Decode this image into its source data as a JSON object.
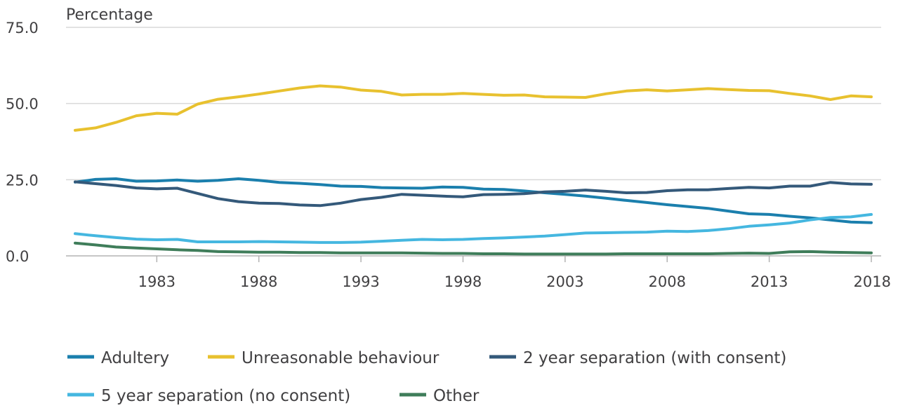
{
  "chart_data": {
    "type": "line",
    "title": "",
    "ylabel": "Percentage",
    "xlabel": "",
    "ylim": [
      0,
      75
    ],
    "xlim": [
      1979,
      2018
    ],
    "y_ticks": [
      0,
      25,
      50,
      75
    ],
    "y_tick_labels": [
      "0.0",
      "25.0",
      "50.0",
      "75.0"
    ],
    "x_ticks": [
      1983,
      1988,
      1993,
      1998,
      2003,
      2008,
      2013,
      2018
    ],
    "grid": true,
    "legend_position": "bottom",
    "x": [
      1979,
      1980,
      1981,
      1982,
      1983,
      1984,
      1985,
      1986,
      1987,
      1988,
      1989,
      1990,
      1991,
      1992,
      1993,
      1994,
      1995,
      1996,
      1997,
      1998,
      1999,
      2000,
      2001,
      2002,
      2003,
      2004,
      2005,
      2006,
      2007,
      2008,
      2009,
      2010,
      2011,
      2012,
      2013,
      2014,
      2015,
      2016,
      2017,
      2018
    ],
    "series": [
      {
        "name": "Adultery",
        "color": "#1b7fad",
        "values": [
          24.2,
          25.1,
          25.3,
          24.5,
          24.6,
          24.9,
          24.5,
          24.8,
          25.3,
          24.8,
          24.1,
          23.8,
          23.4,
          22.9,
          22.8,
          22.4,
          22.3,
          22.2,
          22.6,
          22.5,
          21.9,
          21.8,
          21.3,
          20.7,
          20.2,
          19.6,
          18.9,
          18.2,
          17.5,
          16.8,
          16.2,
          15.6,
          14.7,
          13.8,
          13.6,
          13.0,
          12.5,
          11.8,
          11.1,
          10.9
        ]
      },
      {
        "name": "Unreasonable behaviour",
        "color": "#e8c12f",
        "values": [
          41.2,
          42.0,
          43.8,
          46.0,
          46.8,
          46.5,
          49.8,
          51.4,
          52.2,
          53.1,
          54.1,
          55.1,
          55.8,
          55.4,
          54.4,
          54.0,
          52.8,
          53.0,
          53.0,
          53.3,
          53.0,
          52.7,
          52.8,
          52.2,
          52.1,
          52.0,
          53.2,
          54.1,
          54.5,
          54.1,
          54.5,
          54.9,
          54.6,
          54.3,
          54.2,
          53.3,
          52.5,
          51.3,
          52.5,
          52.2
        ]
      },
      {
        "name": "2 year separation (with consent)",
        "color": "#34597a",
        "values": [
          24.3,
          23.7,
          23.1,
          22.3,
          22.0,
          22.2,
          20.5,
          18.8,
          17.8,
          17.3,
          17.2,
          16.7,
          16.5,
          17.3,
          18.5,
          19.2,
          20.2,
          19.9,
          19.6,
          19.4,
          20.1,
          20.2,
          20.4,
          21.0,
          21.2,
          21.6,
          21.2,
          20.7,
          20.8,
          21.4,
          21.7,
          21.7,
          22.1,
          22.5,
          22.3,
          22.9,
          22.9,
          24.1,
          23.6,
          23.5
        ]
      },
      {
        "name": "5 year separation (no consent)",
        "color": "#45b7e0",
        "values": [
          7.3,
          6.6,
          6.0,
          5.5,
          5.3,
          5.4,
          4.6,
          4.6,
          4.6,
          4.7,
          4.6,
          4.5,
          4.4,
          4.4,
          4.5,
          4.8,
          5.1,
          5.4,
          5.3,
          5.4,
          5.7,
          5.9,
          6.2,
          6.5,
          7.0,
          7.5,
          7.6,
          7.7,
          7.8,
          8.1,
          8.0,
          8.3,
          8.9,
          9.7,
          10.2,
          10.8,
          11.8,
          12.6,
          12.8,
          13.6
        ]
      },
      {
        "name": "Other",
        "color": "#3f7d5a",
        "values": [
          4.2,
          3.6,
          2.9,
          2.6,
          2.3,
          2.0,
          1.8,
          1.4,
          1.3,
          1.2,
          1.2,
          1.1,
          1.1,
          1.0,
          1.0,
          1.0,
          1.0,
          0.9,
          0.8,
          0.8,
          0.7,
          0.7,
          0.6,
          0.6,
          0.6,
          0.6,
          0.6,
          0.7,
          0.7,
          0.7,
          0.7,
          0.7,
          0.8,
          0.9,
          0.8,
          1.3,
          1.4,
          1.2,
          1.1,
          1.0
        ]
      }
    ]
  }
}
